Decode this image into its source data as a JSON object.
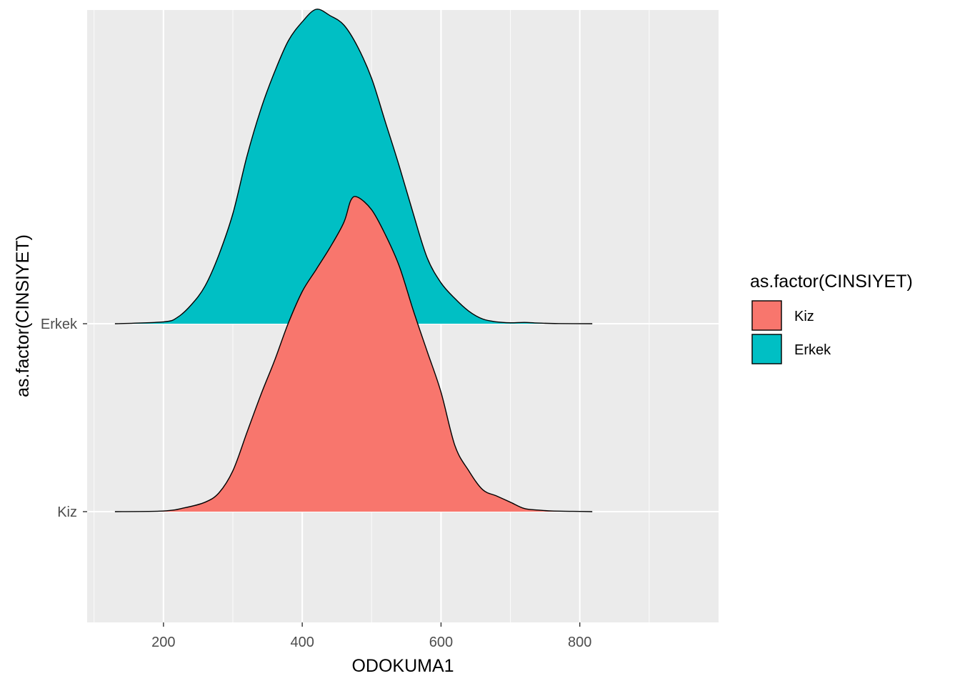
{
  "chart_data": {
    "type": "area",
    "subtype": "ridgeline-density",
    "title": "",
    "xlabel": "ODOKUMA1",
    "ylabel": "as.factor(CINSIYET)",
    "xlim": [
      90,
      1000
    ],
    "x_ticks": [
      200,
      400,
      600,
      800
    ],
    "categories": [
      "Kiz",
      "Erkek"
    ],
    "grid": true,
    "panel_background": "#ebebeb",
    "legend": {
      "title": "as.factor(CINSIYET)",
      "position": "right",
      "entries": [
        {
          "label": "Kiz",
          "color": "#f8766d"
        },
        {
          "label": "Erkek",
          "color": "#00bfc4"
        }
      ]
    },
    "series": [
      {
        "name": "Kiz",
        "color": "#f8766d",
        "x": [
          130,
          200,
          230,
          260,
          280,
          300,
          320,
          340,
          360,
          380,
          400,
          420,
          440,
          460,
          470,
          480,
          500,
          520,
          540,
          560,
          580,
          600,
          620,
          640,
          660,
          680,
          700,
          720,
          740,
          760,
          790,
          818
        ],
        "density": [
          0.0,
          0.002,
          0.012,
          0.03,
          0.06,
          0.13,
          0.25,
          0.37,
          0.48,
          0.6,
          0.7,
          0.77,
          0.84,
          0.92,
          0.99,
          1.0,
          0.96,
          0.88,
          0.78,
          0.64,
          0.51,
          0.38,
          0.21,
          0.13,
          0.07,
          0.05,
          0.03,
          0.01,
          0.005,
          0.002,
          0.001,
          0.0
        ]
      },
      {
        "name": "Erkek",
        "color": "#00bfc4",
        "x": [
          130,
          200,
          220,
          240,
          260,
          280,
          300,
          320,
          340,
          360,
          380,
          400,
          420,
          440,
          460,
          480,
          500,
          520,
          540,
          560,
          580,
          600,
          620,
          640,
          660,
          680,
          700,
          720,
          740,
          770,
          818
        ],
        "density": [
          0.0,
          0.006,
          0.02,
          0.06,
          0.12,
          0.22,
          0.35,
          0.53,
          0.68,
          0.8,
          0.9,
          0.96,
          1.0,
          0.98,
          0.95,
          0.88,
          0.78,
          0.64,
          0.5,
          0.35,
          0.21,
          0.13,
          0.08,
          0.04,
          0.015,
          0.006,
          0.003,
          0.004,
          0.002,
          0.0005,
          0.0
        ]
      }
    ]
  }
}
